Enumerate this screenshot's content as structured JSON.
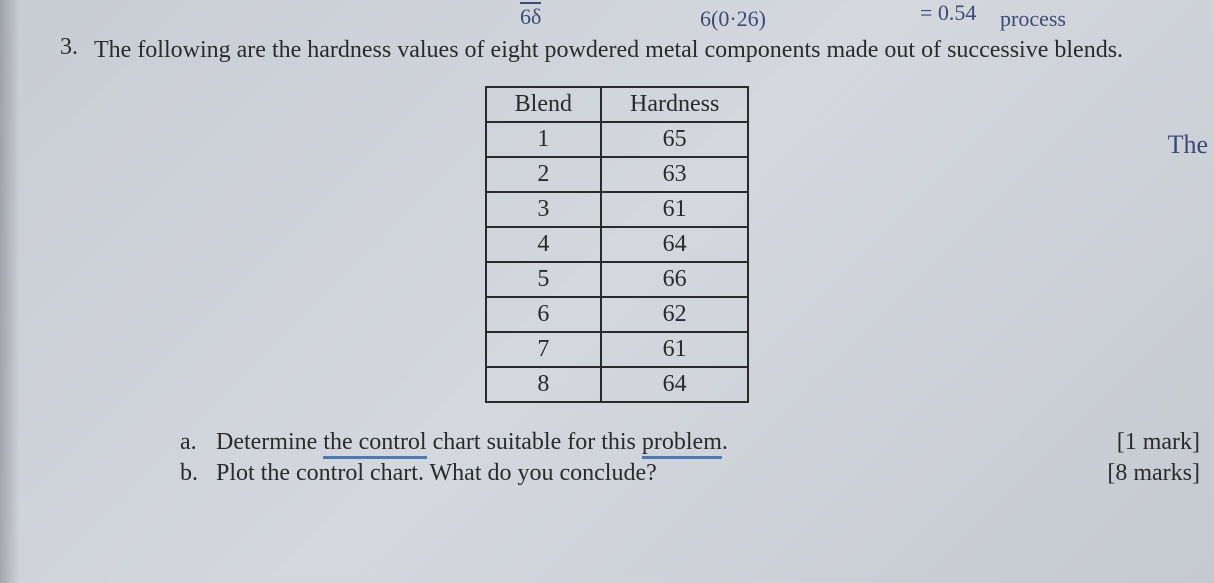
{
  "handwriting": {
    "top1": "6δ",
    "top2": "6(0·26)",
    "top3": "= 0.54",
    "top4": "process",
    "right1": "The"
  },
  "question": {
    "number": "3.",
    "text": "The following are the hardness values of eight powdered metal components made out of successive blends."
  },
  "table": {
    "headers": [
      "Blend",
      "Hardness"
    ],
    "rows": [
      [
        "1",
        "65"
      ],
      [
        "2",
        "63"
      ],
      [
        "3",
        "61"
      ],
      [
        "4",
        "64"
      ],
      [
        "5",
        "66"
      ],
      [
        "6",
        "62"
      ],
      [
        "7",
        "61"
      ],
      [
        "8",
        "64"
      ]
    ],
    "border_color": "#2a2a2a",
    "cell_fontsize": 24
  },
  "subparts": {
    "a": {
      "label": "a.",
      "text_pre": "Determine ",
      "text_u1": "the control",
      "text_mid": " chart suitable for this ",
      "text_u2": "problem",
      "text_post": ".",
      "marks": "[1 mark]"
    },
    "b": {
      "label": "b.",
      "text": "Plot the control chart.  What do you conclude?",
      "marks": "[8 marks]"
    }
  },
  "colors": {
    "text": "#2a2a2a",
    "handwriting": "#3a4a7a",
    "underline": "#4a7ab8",
    "background": "#cdd2d7"
  }
}
